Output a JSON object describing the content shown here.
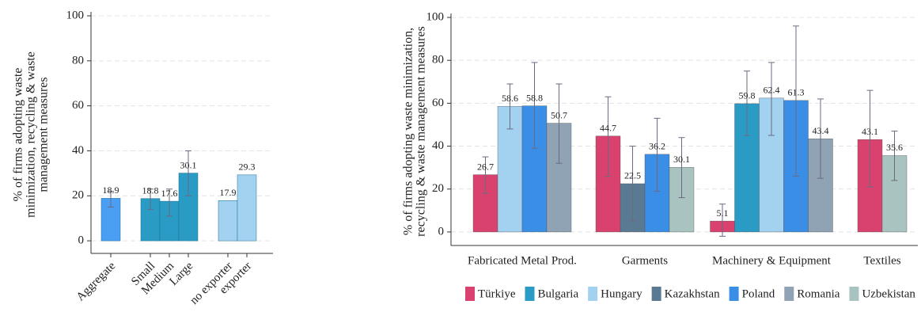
{
  "chart_data": [
    {
      "type": "bar",
      "y_label": [
        "% of firms adopting waste",
        "minimization, recycling & waste",
        "management measures"
      ],
      "categories": [
        "Aggregate",
        "Small",
        "Medium",
        "Large",
        "no exporter",
        "exporter"
      ],
      "values": [
        18.9,
        18.8,
        17.6,
        30.1,
        17.9,
        29.3
      ],
      "ci_low": [
        15,
        14,
        11,
        20,
        null,
        null
      ],
      "ci_high": [
        22,
        23,
        23,
        40,
        null,
        null
      ],
      "colors": [
        "#4a9ff5",
        "#2a9bc4",
        "#2a9bc4",
        "#2a9bc4",
        "#a3d1f0",
        "#a3d1f0"
      ],
      "ylim": [
        -5.6,
        100
      ],
      "yticks": [
        0,
        20,
        40,
        60,
        80,
        100
      ],
      "grid": true
    },
    {
      "type": "grouped-bar",
      "y_label": [
        "% of firms adopting waste minimization,",
        "recycling & waste management measures"
      ],
      "categories": [
        "Fabricated Metal Prod.",
        "Garments",
        "Machinery & Equipment",
        "Textiles"
      ],
      "series": [
        {
          "name": "Türkiye",
          "color": "#d9426e",
          "values": [
            26.7,
            44.7,
            5.1,
            43.1
          ],
          "ci_low": [
            18,
            26,
            -2,
            21
          ],
          "ci_high": [
            35,
            63,
            13,
            66
          ]
        },
        {
          "name": "Bulgaria",
          "color": "#2a9bc4",
          "values": [
            null,
            null,
            59.8,
            null
          ],
          "ci_low": [
            null,
            null,
            45,
            null
          ],
          "ci_high": [
            null,
            null,
            75,
            null
          ]
        },
        {
          "name": "Hungary",
          "color": "#a3d1f0",
          "values": [
            58.6,
            null,
            62.4,
            null
          ],
          "ci_low": [
            48,
            null,
            45,
            null
          ],
          "ci_high": [
            69,
            null,
            79,
            null
          ]
        },
        {
          "name": "Kazakhstan",
          "color": "#5a7a94",
          "values": [
            null,
            22.5,
            null,
            null
          ],
          "ci_low": [
            null,
            5,
            null,
            null
          ],
          "ci_high": [
            null,
            40,
            null,
            null
          ]
        },
        {
          "name": "Poland",
          "color": "#3a8ee6",
          "values": [
            58.8,
            36.2,
            61.3,
            null
          ],
          "ci_low": [
            39,
            19,
            26,
            null
          ],
          "ci_high": [
            79,
            53,
            96,
            null
          ]
        },
        {
          "name": "Romania",
          "color": "#8fa3b5",
          "values": [
            50.7,
            null,
            43.4,
            null
          ],
          "ci_low": [
            32,
            null,
            25,
            null
          ],
          "ci_high": [
            69,
            null,
            62,
            null
          ]
        },
        {
          "name": "Uzbekistan",
          "color": "#a9c4c0",
          "values": [
            null,
            30.1,
            null,
            35.6
          ],
          "ci_low": [
            null,
            16,
            null,
            24
          ],
          "ci_high": [
            null,
            44,
            null,
            47
          ]
        }
      ],
      "ylim": [
        -6.3,
        100
      ],
      "yticks": [
        0,
        20,
        40,
        60,
        80,
        100
      ],
      "grid": true
    }
  ]
}
